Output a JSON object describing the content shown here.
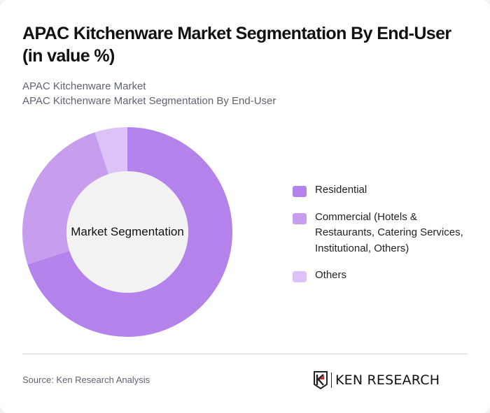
{
  "header": {
    "title": "APAC Kitchenware Market Segmentation By End-User (in value %)",
    "subtitle_line1": "APAC Kitchenware Market",
    "subtitle_line2": "APAC Kitchenware Market Segmentation By End-User"
  },
  "chart": {
    "center_label": "Market Segmentation"
  },
  "legend": [
    {
      "label": "Residential",
      "color": "#b382ea"
    },
    {
      "label": "Commercial (Hotels & Restaurants, Catering Services, Institutional, Others)",
      "color": "#c79ded"
    },
    {
      "label": "Others",
      "color": "#dcc2f6"
    }
  ],
  "footer": {
    "source": "Source: Ken Research Analysis",
    "logo_text": "KEN RESEARCH"
  },
  "chart_data": {
    "type": "pie",
    "variant": "donut",
    "title": "APAC Kitchenware Market Segmentation By End-User (in value %)",
    "center_label": "Market Segmentation",
    "categories": [
      "Residential",
      "Commercial (Hotels & Restaurants, Catering Services, Institutional, Others)",
      "Others"
    ],
    "values": [
      70,
      25,
      5
    ],
    "colors": [
      "#b382ea",
      "#c79ded",
      "#dcc2f6"
    ],
    "unit": "%",
    "legend_position": "right",
    "start_angle": "top, clockwise"
  }
}
